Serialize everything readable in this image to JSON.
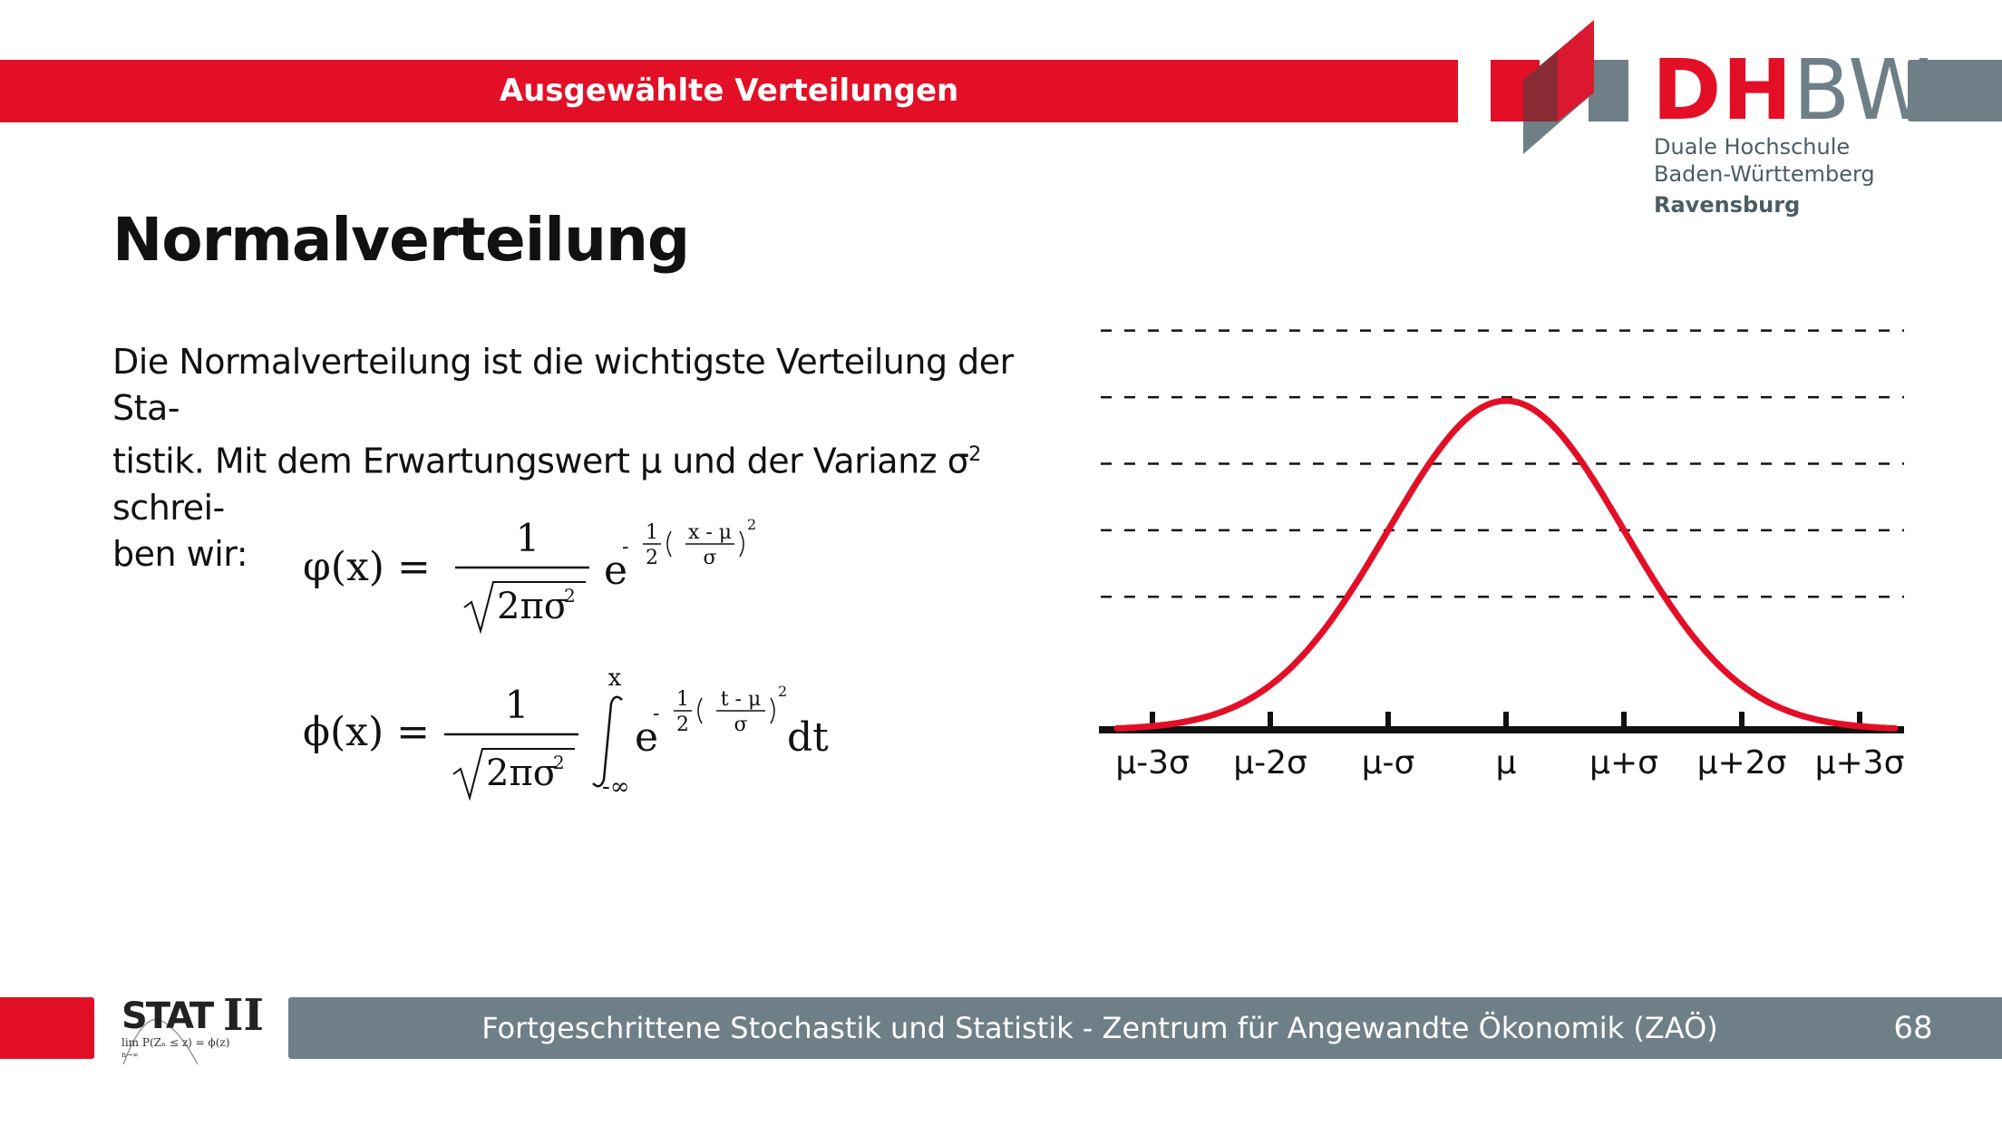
{
  "header": {
    "title": "Ausgewählte Verteilungen",
    "color": "#e30f26"
  },
  "logo": {
    "word_red": "DH",
    "word_grey": "BW",
    "line1": "Duale Hochschule",
    "line2": "Baden-Württemberg",
    "campus": "Ravensburg",
    "icon": "dhbw-logo-icon"
  },
  "page": {
    "title": "Normalverteilung",
    "intro_line1": "Die Normalverteilung ist die wichtigste Verteilung der Sta-",
    "intro_line2_a": "tistik. Mit dem Erwartungswert μ und der Varianz σ",
    "intro_sup": "2",
    "intro_line2_b": " schrei-",
    "intro_line3": "ben wir:"
  },
  "formulas": {
    "pdf_lhs": "φ(x) =",
    "cdf_lhs": "ϕ(x) =",
    "numerator": "1",
    "denominator": "2πσ",
    "denominator_sup": "2",
    "e": "e",
    "exp_minus": "-",
    "exp_half_num": "1",
    "exp_half_den": "2",
    "pdf_exp_num": "x - μ",
    "cdf_exp_num": "t - μ",
    "exp_den": "σ",
    "exp_sup": "2",
    "int_upper": "x",
    "int_lower": "-∞",
    "differential": "dt"
  },
  "chart_data": {
    "type": "line",
    "x_ticks": [
      "μ-3σ",
      "μ-2σ",
      "μ-σ",
      "μ",
      "μ+σ",
      "μ+2σ",
      "μ+3σ"
    ],
    "x_range": [
      -3.3,
      3.3
    ],
    "y_range": [
      0,
      0.5
    ],
    "grid": "dashed horizontal lines",
    "curve_color": "#e30f26",
    "series": [
      {
        "x": [
          -3.3,
          -3,
          -2.5,
          -2,
          -1.5,
          -1,
          -0.5,
          0,
          0.5,
          1,
          1.5,
          2,
          2.5,
          3,
          3.3
        ],
        "values": [
          0.0017,
          0.0044,
          0.0175,
          0.054,
          0.1295,
          0.242,
          0.3521,
          0.3989,
          0.3521,
          0.242,
          0.1295,
          0.054,
          0.0175,
          0.0044,
          0.0017
        ]
      }
    ]
  },
  "footer": {
    "course": "Fortgeschrittene Stochastik und Statistik - Zentrum für Angewandte Ökonomik (ZAÖ)",
    "page_number": "68",
    "stat_logo_text": "STAT",
    "stat_logo_roman": "II",
    "stat_logo_formula": "lim P(Zₙ ≤ z) = ϕ(z)",
    "stat_logo_formula_sub": "n→∞"
  }
}
